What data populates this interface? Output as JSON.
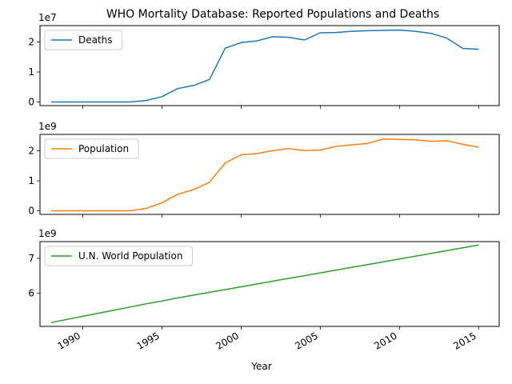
{
  "chart_data": {
    "type": "line",
    "title": "WHO Mortality Database: Reported Populations and Deaths",
    "xlabel": "Year",
    "x": [
      1988,
      1989,
      1990,
      1991,
      1992,
      1993,
      1994,
      1995,
      1996,
      1997,
      1998,
      1999,
      2000,
      2001,
      2002,
      2003,
      2004,
      2005,
      2006,
      2007,
      2008,
      2009,
      2010,
      2011,
      2012,
      2013,
      2014,
      2015
    ],
    "xlim": [
      1987.3,
      2016.3
    ],
    "xticks": [
      "1990",
      "1995",
      "2000",
      "2005",
      "2010",
      "2015"
    ],
    "legend_placement": "upper-left",
    "grid": false,
    "panels": [
      {
        "series": [
          {
            "name": "Deaths",
            "color": "#1f77b4",
            "values": [
              0,
              0,
              0,
              0,
              0,
              0,
              500000,
              1800000,
              4500000,
              5500000,
              7500000,
              18000000,
              19800000,
              20400000,
              21800000,
              21600000,
              20700000,
              23100000,
              23200000,
              23600000,
              23800000,
              23900000,
              24000000,
              23600000,
              22900000,
              21300000,
              17900000,
              17600000
            ]
          }
        ],
        "offset_label": "1e7",
        "ylim": [
          -1200000,
          25500000
        ],
        "yticks": [
          0,
          10000000,
          20000000
        ],
        "ytick_labels": [
          "0",
          "1",
          "2"
        ]
      },
      {
        "series": [
          {
            "name": "Population",
            "color": "#ff7f0e",
            "values": [
              0,
              0,
              0,
              0,
              0,
              0,
              80000000,
              270000000,
              550000000,
              710000000,
              950000000,
              1600000000,
              1870000000,
              1910000000,
              2010000000,
              2080000000,
              2010000000,
              2030000000,
              2150000000,
              2200000000,
              2250000000,
              2400000000,
              2380000000,
              2370000000,
              2320000000,
              2340000000,
              2220000000,
              2120000000
            ]
          }
        ],
        "offset_label": "1e9",
        "ylim": [
          -120000000,
          2550000000
        ],
        "yticks": [
          0,
          1000000000,
          2000000000
        ],
        "ytick_labels": [
          "0",
          "1",
          "2"
        ]
      },
      {
        "series": [
          {
            "name": "U.N. World Population",
            "color": "#2ca02c",
            "values": [
              5150000000,
              5240000000,
              5330000000,
              5420000000,
              5510000000,
              5600000000,
              5690000000,
              5770000000,
              5860000000,
              5940000000,
              6020000000,
              6100000000,
              6180000000,
              6260000000,
              6340000000,
              6420000000,
              6500000000,
              6580000000,
              6660000000,
              6740000000,
              6820000000,
              6900000000,
              6980000000,
              7060000000,
              7140000000,
              7220000000,
              7300000000,
              7380000000
            ]
          }
        ],
        "offset_label": "1e9",
        "ylim": [
          5040000000,
          7480000000
        ],
        "yticks": [
          6000000000,
          7000000000
        ],
        "ytick_labels": [
          "6",
          "7"
        ]
      }
    ]
  }
}
